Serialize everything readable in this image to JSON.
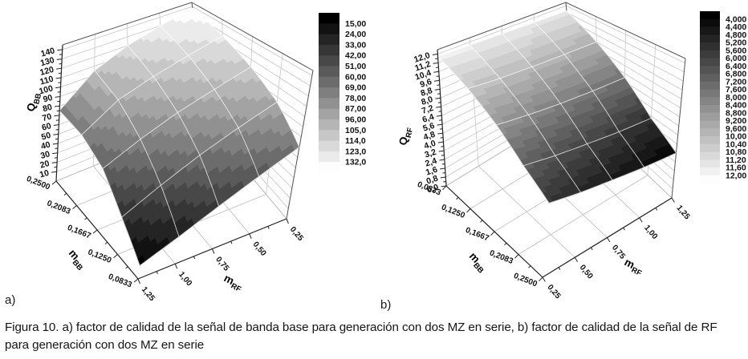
{
  "figure": {
    "panel_a_label": "a)",
    "panel_b_label": "b)",
    "caption_lines": [
      "Figura 10. a) factor de calidad de la señal de banda base para generación con dos MZ en serie, b) factor de calidad de la señal de RF",
      "para generación con dos MZ en serie"
    ]
  },
  "chart_data": [
    {
      "panel": "a",
      "type": "heatmap",
      "subtype": "3d-colormap-surface",
      "title": "",
      "zlabel": {
        "main": "Q",
        "sub": "BB"
      },
      "xlabel": {
        "main": "m",
        "sub": "RF"
      },
      "ylabel": {
        "main": "m",
        "sub": "BB"
      },
      "x_axis": {
        "name": "m_RF",
        "ticks": [
          "1,25",
          "1,00",
          "0,75",
          "0,50",
          "0,25"
        ],
        "values": [
          1.25,
          1.0,
          0.75,
          0.5,
          0.25
        ]
      },
      "y_axis": {
        "name": "m_BB",
        "ticks": [
          "0,0833",
          "0,1250",
          "0,1667",
          "0,2083",
          "0,2500"
        ],
        "values": [
          0.0833,
          0.125,
          0.1667,
          0.2083,
          0.25
        ]
      },
      "z_axis": {
        "name": "Q_BB",
        "ticks": [
          "10",
          "20",
          "30",
          "40",
          "50",
          "60",
          "70",
          "80",
          "90",
          "100",
          "110",
          "120",
          "130",
          "140"
        ],
        "values": [
          10,
          20,
          30,
          40,
          50,
          60,
          70,
          80,
          90,
          100,
          110,
          120,
          130,
          140
        ],
        "range": [
          0,
          145
        ]
      },
      "surface_z_rows_y_cols_x": [
        [
          12,
          25,
          40,
          55,
          70
        ],
        [
          35,
          52,
          68,
          82,
          95
        ],
        [
          60,
          76,
          90,
          101,
          112
        ],
        [
          72,
          95,
          107,
          117,
          126
        ],
        [
          75,
          105,
          120,
          130,
          138
        ]
      ],
      "color_scale": {
        "first_level": 15,
        "step": 9,
        "low_color": "#000000",
        "high_color": "#fdfdfd"
      },
      "legend_labels": [
        "15,00",
        "24,00",
        "33,00",
        "42,00",
        "51,00",
        "60,00",
        "69,00",
        "78,00",
        "87,00",
        "96,00",
        "105,0",
        "114,0",
        "123,0",
        "132,0"
      ]
    },
    {
      "panel": "b",
      "type": "heatmap",
      "subtype": "3d-colormap-surface",
      "title": "",
      "zlabel": {
        "main": "Q",
        "sub": "RF"
      },
      "xlabel": {
        "main": "m",
        "sub": "RF"
      },
      "ylabel": {
        "main": "m",
        "sub": "BB"
      },
      "x_axis": {
        "name": "m_RF",
        "ticks": [
          "0,25",
          "0,50",
          "0,75",
          "1,00",
          "1,25"
        ],
        "values": [
          0.25,
          0.5,
          0.75,
          1.0,
          1.25
        ]
      },
      "y_axis": {
        "name": "m_BB",
        "ticks": [
          "0,2500",
          "0,2083",
          "0,1667",
          "0,1250",
          "0,0833"
        ],
        "values": [
          0.25,
          0.2083,
          0.1667,
          0.125,
          0.0833
        ]
      },
      "z_axis": {
        "name": "Q_RF",
        "ticks": [
          "0,0",
          "0,8",
          "1,6",
          "2,4",
          "3,2",
          "4,0",
          "4,8",
          "5,6",
          "6,4",
          "7,2",
          "8,0",
          "8,8",
          "9,6",
          "10,4",
          "11,2",
          "12,0"
        ],
        "values": [
          0,
          0.8,
          1.6,
          2.4,
          3.2,
          4.0,
          4.8,
          5.6,
          6.4,
          7.2,
          8.0,
          8.8,
          9.6,
          10.4,
          11.2,
          12.0
        ],
        "range": [
          0,
          12.4
        ]
      },
      "surface_z_rows_y_cols_x": [
        [
          5.6,
          5.1,
          4.7,
          4.3,
          4.0
        ],
        [
          7.0,
          6.5,
          6.1,
          5.7,
          5.4
        ],
        [
          8.8,
          8.4,
          8.05,
          7.8,
          7.6
        ],
        [
          10.4,
          10.1,
          9.9,
          9.75,
          9.6
        ],
        [
          11.8,
          11.7,
          11.6,
          11.5,
          11.4
        ]
      ],
      "color_scale": {
        "first_level": 4.0,
        "step": 0.4,
        "low_color": "#000000",
        "high_color": "#fdfdfd"
      },
      "legend_labels": [
        "4,000",
        "4,400",
        "4,800",
        "5,200",
        "5,600",
        "6,000",
        "6,400",
        "6,800",
        "7,200",
        "7,600",
        "8,000",
        "8,400",
        "8,800",
        "9,200",
        "9,600",
        "10,00",
        "10,40",
        "10,80",
        "11,20",
        "11,60",
        "12,00"
      ]
    }
  ]
}
